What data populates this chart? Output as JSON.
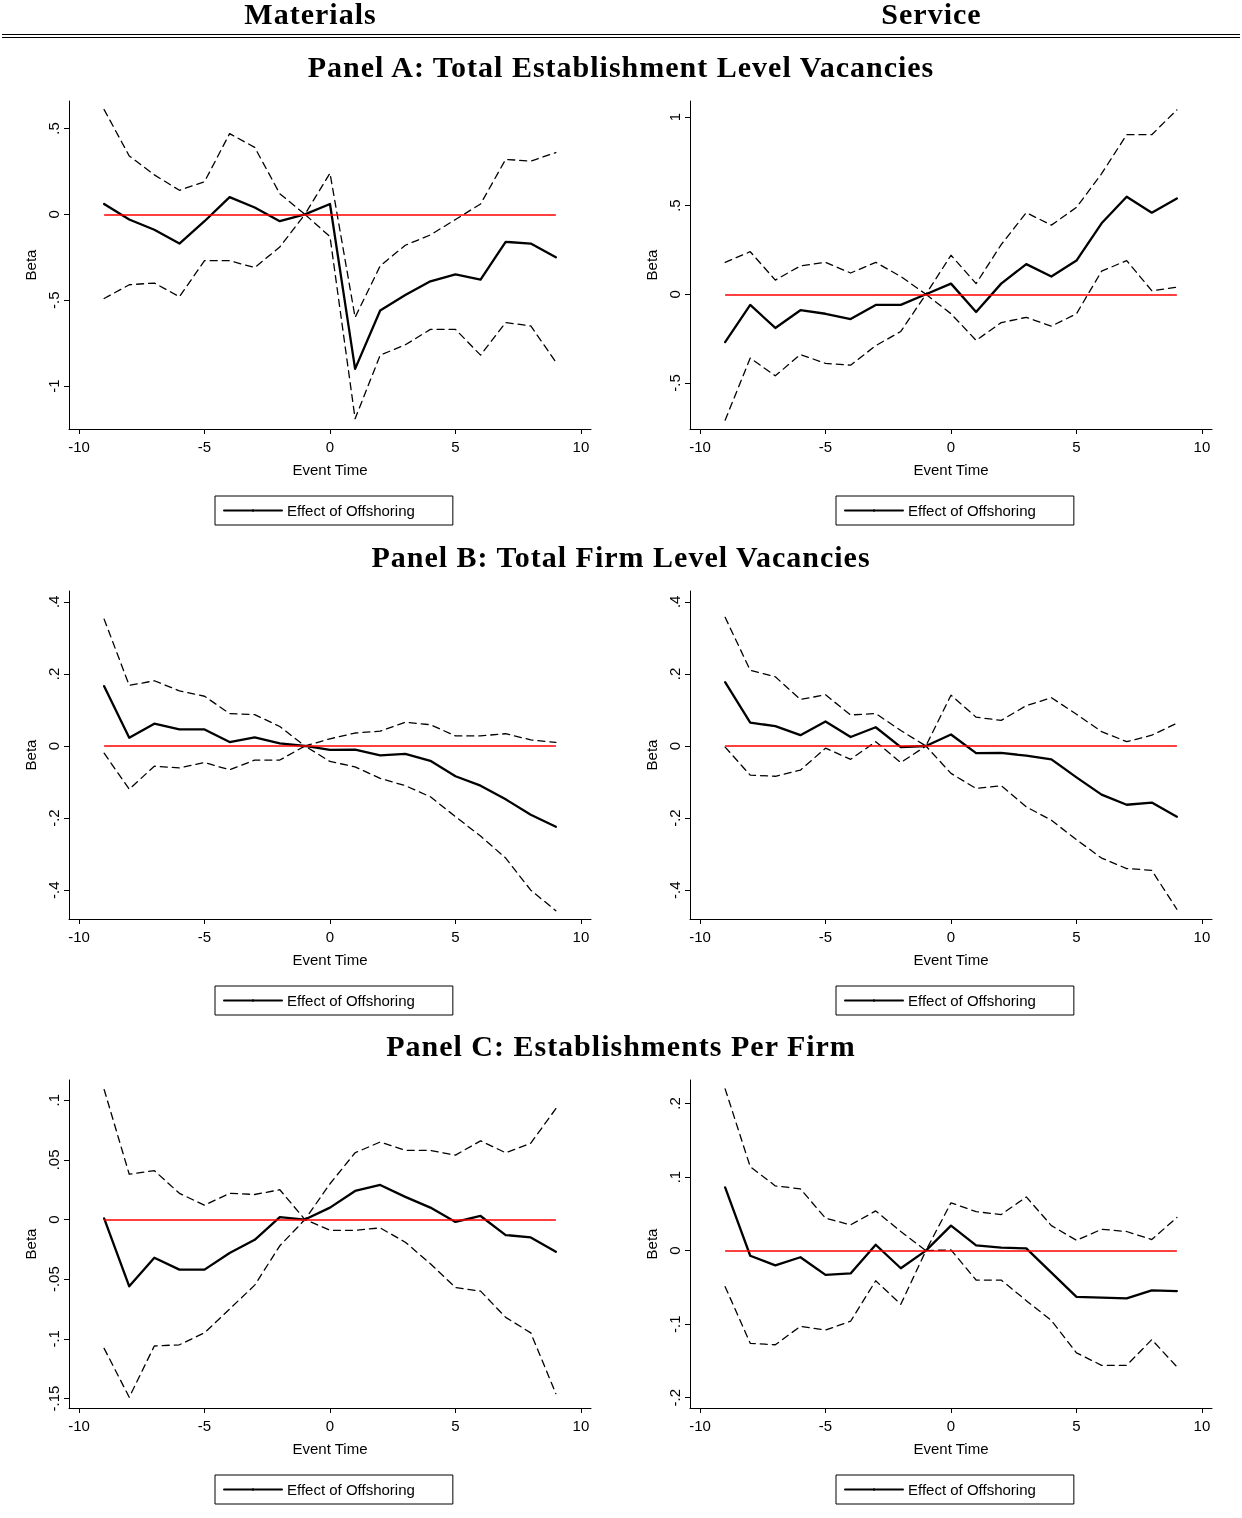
{
  "chart_data": [
    {
      "type": "line",
      "title": "Panel A: Total Establishment Level Vacancies",
      "annotations": [
        "Materials"
      ],
      "xlabel": "Event Time",
      "ylabel": "Beta",
      "legend": "bottom",
      "marker": "none",
      "x": [
        -9,
        -8,
        -7,
        -6,
        -5,
        -4,
        -3,
        -2,
        -1,
        0,
        1,
        2,
        3,
        4,
        5,
        6,
        7,
        8,
        9
      ],
      "xlim": [
        -10.4,
        10.4
      ],
      "xticks": [
        -10,
        -5,
        0,
        5,
        10
      ],
      "ylim": [
        -1.25,
        0.66
      ],
      "yticks": [
        {
          "value": 0.5,
          "label": ".5"
        },
        0,
        {
          "value": -0.5,
          "label": "-.5"
        },
        -1
      ],
      "ref_lines": [
        {
          "axis": "y",
          "value": 0,
          "color": "#ff0000"
        }
      ],
      "series": [
        {
          "name": "Effect of Offshoring",
          "color": "#000000",
          "line_style": "solid",
          "values": [
            0.06,
            -0.03,
            -0.09,
            -0.17,
            -0.04,
            0.1,
            0.04,
            -0.04,
            0,
            0.06,
            -0.9,
            -0.56,
            -0.47,
            -0.39,
            -0.35,
            -0.38,
            -0.16,
            -0.17,
            -0.25
          ]
        },
        {
          "color": "#000000",
          "line_style": "dashed",
          "values": [
            0.61,
            0.34,
            0.23,
            0.14,
            0.19,
            0.47,
            0.39,
            0.12,
            0,
            0.24,
            -0.6,
            -0.3,
            -0.18,
            -0.12,
            -0.03,
            0.06,
            0.32,
            0.31,
            0.36
          ]
        },
        {
          "color": "#000000",
          "line_style": "dashed",
          "values": [
            -0.49,
            -0.41,
            -0.4,
            -0.48,
            -0.27,
            -0.27,
            -0.31,
            -0.19,
            0,
            -0.13,
            -1.19,
            -0.82,
            -0.76,
            -0.67,
            -0.67,
            -0.82,
            -0.63,
            -0.65,
            -0.86
          ]
        }
      ]
    },
    {
      "type": "line",
      "annotations": [
        "Service"
      ],
      "xlabel": "Event Time",
      "ylabel": "Beta",
      "legend": "bottom",
      "marker": "none",
      "x": [
        -9,
        -8,
        -7,
        -6,
        -5,
        -4,
        -3,
        -2,
        -1,
        0,
        1,
        2,
        3,
        4,
        5,
        6,
        7,
        8,
        9
      ],
      "xlim": [
        -10.4,
        10.4
      ],
      "xticks": [
        -10,
        -5,
        0,
        5,
        10
      ],
      "ylim": [
        -0.76,
        1.09
      ],
      "yticks": [
        1,
        {
          "value": 0.5,
          "label": ".5"
        },
        0,
        {
          "value": -0.5,
          "label": "-.5"
        }
      ],
      "ref_lines": [
        {
          "axis": "y",
          "value": 0,
          "color": "#ff0000"
        }
      ],
      "series": [
        {
          "name": "Effect of Offshoring",
          "color": "#000000",
          "line_style": "solid",
          "values": [
            -0.27,
            -0.06,
            -0.19,
            -0.09,
            -0.11,
            -0.14,
            -0.06,
            -0.06,
            0,
            0.06,
            -0.1,
            0.06,
            0.17,
            0.1,
            0.19,
            0.4,
            0.55,
            0.46,
            0.54
          ]
        },
        {
          "color": "#000000",
          "line_style": "dashed",
          "values": [
            0.18,
            0.24,
            0.08,
            0.16,
            0.18,
            0.12,
            0.18,
            0.1,
            0,
            0.22,
            0.06,
            0.28,
            0.46,
            0.39,
            0.49,
            0.68,
            0.9,
            0.9,
            1.04
          ]
        },
        {
          "color": "#000000",
          "line_style": "dashed",
          "values": [
            -0.71,
            -0.36,
            -0.46,
            -0.34,
            -0.39,
            -0.4,
            -0.29,
            -0.21,
            0,
            -0.11,
            -0.26,
            -0.16,
            -0.13,
            -0.18,
            -0.11,
            0.13,
            0.19,
            0.02,
            0.04
          ]
        }
      ]
    },
    {
      "type": "line",
      "title": "Panel B: Total Firm Level Vacancies",
      "xlabel": "Event Time",
      "ylabel": "Beta",
      "legend": "bottom",
      "marker": "none",
      "x": [
        -9,
        -8,
        -7,
        -6,
        -5,
        -4,
        -3,
        -2,
        -1,
        0,
        1,
        2,
        3,
        4,
        5,
        6,
        7,
        8,
        9
      ],
      "xlim": [
        -10.4,
        10.4
      ],
      "xticks": [
        -10,
        -5,
        0,
        5,
        10
      ],
      "ylim": [
        -0.48,
        0.43
      ],
      "yticks": [
        {
          "value": 0.4,
          "label": ".4"
        },
        {
          "value": 0.2,
          "label": ".2"
        },
        0,
        {
          "value": -0.2,
          "label": "-.2"
        },
        {
          "value": -0.4,
          "label": "-.4"
        }
      ],
      "ref_lines": [
        {
          "axis": "y",
          "value": 0,
          "color": "#ff0000"
        }
      ],
      "series": [
        {
          "name": "Effect of Offshoring",
          "color": "#000000",
          "line_style": "solid",
          "values": [
            0.166,
            0.023,
            0.062,
            0.046,
            0.046,
            0.011,
            0.024,
            0.007,
            0,
            -0.011,
            -0.01,
            -0.026,
            -0.022,
            -0.041,
            -0.084,
            -0.11,
            -0.148,
            -0.191,
            -0.224
          ]
        },
        {
          "color": "#000000",
          "line_style": "dashed",
          "values": [
            0.352,
            0.168,
            0.181,
            0.153,
            0.138,
            0.09,
            0.087,
            0.054,
            0,
            0.02,
            0.036,
            0.041,
            0.066,
            0.059,
            0.028,
            0.028,
            0.034,
            0.017,
            0.01
          ]
        },
        {
          "color": "#000000",
          "line_style": "dashed",
          "values": [
            -0.02,
            -0.12,
            -0.056,
            -0.061,
            -0.046,
            -0.066,
            -0.039,
            -0.039,
            0,
            -0.043,
            -0.058,
            -0.09,
            -0.11,
            -0.141,
            -0.196,
            -0.25,
            -0.311,
            -0.4,
            -0.457
          ]
        }
      ]
    },
    {
      "type": "line",
      "xlabel": "Event Time",
      "ylabel": "Beta",
      "legend": "bottom",
      "marker": "none",
      "x": [
        -9,
        -8,
        -7,
        -6,
        -5,
        -4,
        -3,
        -2,
        -1,
        0,
        1,
        2,
        3,
        4,
        5,
        6,
        7,
        8,
        9
      ],
      "xlim": [
        -10.4,
        10.4
      ],
      "xticks": [
        -10,
        -5,
        0,
        5,
        10
      ],
      "ylim": [
        -0.48,
        0.43
      ],
      "yticks": [
        {
          "value": 0.4,
          "label": ".4"
        },
        {
          "value": 0.2,
          "label": ".2"
        },
        0,
        {
          "value": -0.2,
          "label": "-.2"
        },
        {
          "value": -0.4,
          "label": "-.4"
        }
      ],
      "ref_lines": [
        {
          "axis": "y",
          "value": 0,
          "color": "#ff0000"
        }
      ],
      "series": [
        {
          "name": "Effect of Offshoring",
          "color": "#000000",
          "line_style": "solid",
          "values": [
            0.177,
            0.065,
            0.055,
            0.03,
            0.068,
            0.025,
            0.052,
            -0.003,
            0,
            0.032,
            -0.02,
            -0.019,
            -0.027,
            -0.037,
            -0.087,
            -0.135,
            -0.163,
            -0.157,
            -0.196
          ]
        },
        {
          "color": "#000000",
          "line_style": "dashed",
          "values": [
            0.357,
            0.21,
            0.192,
            0.129,
            0.142,
            0.086,
            0.09,
            0.043,
            0,
            0.141,
            0.08,
            0.071,
            0.112,
            0.134,
            0.088,
            0.04,
            0.012,
            0.03,
            0.063
          ]
        },
        {
          "color": "#000000",
          "line_style": "dashed",
          "values": [
            -0.003,
            -0.081,
            -0.084,
            -0.067,
            -0.006,
            -0.037,
            0.012,
            -0.046,
            0,
            -0.076,
            -0.118,
            -0.11,
            -0.169,
            -0.206,
            -0.26,
            -0.311,
            -0.34,
            -0.345,
            -0.453
          ]
        }
      ]
    },
    {
      "type": "line",
      "title": "Panel C: Establishments Per Firm",
      "xlabel": "Event Time",
      "ylabel": "Beta",
      "legend": "bottom",
      "marker": "none",
      "x": [
        -9,
        -8,
        -7,
        -6,
        -5,
        -4,
        -3,
        -2,
        -1,
        0,
        1,
        2,
        3,
        4,
        5,
        6,
        7,
        8,
        9
      ],
      "xlim": [
        -10.4,
        10.4
      ],
      "xticks": [
        -10,
        -5,
        0,
        5,
        10
      ],
      "ylim": [
        -0.158,
        0.117
      ],
      "yticks": [
        {
          "value": 0.1,
          "label": ".1"
        },
        {
          "value": 0.05,
          "label": ".05"
        },
        0,
        {
          "value": -0.05,
          "label": "-.05"
        },
        {
          "value": -0.1,
          "label": "-.1"
        },
        {
          "value": -0.15,
          "label": "-.15"
        }
      ],
      "ref_lines": [
        {
          "axis": "y",
          "value": 0,
          "color": "#ff0000"
        }
      ],
      "series": [
        {
          "name": "Effect of Offshoring",
          "color": "#000000",
          "line_style": "solid",
          "values": [
            0.001,
            -0.056,
            -0.032,
            -0.042,
            -0.042,
            -0.028,
            -0.017,
            0.002,
            0,
            0.01,
            0.024,
            0.029,
            0.019,
            0.01,
            -0.002,
            0.003,
            -0.013,
            -0.015,
            -0.027
          ]
        },
        {
          "color": "#000000",
          "line_style": "dashed",
          "values": [
            0.109,
            0.038,
            0.041,
            0.022,
            0.012,
            0.022,
            0.021,
            0.025,
            0,
            0.03,
            0.056,
            0.065,
            0.058,
            0.058,
            0.054,
            0.066,
            0.056,
            0.064,
            0.093
          ]
        },
        {
          "color": "#000000",
          "line_style": "dashed",
          "values": [
            -0.108,
            -0.149,
            -0.106,
            -0.105,
            -0.095,
            -0.075,
            -0.055,
            -0.022,
            0,
            -0.009,
            -0.009,
            -0.007,
            -0.019,
            -0.037,
            -0.057,
            -0.06,
            -0.082,
            -0.095,
            -0.146
          ]
        }
      ]
    },
    {
      "type": "line",
      "xlabel": "Event Time",
      "ylabel": "Beta",
      "legend": "bottom",
      "marker": "none",
      "x": [
        -9,
        -8,
        -7,
        -6,
        -5,
        -4,
        -3,
        -2,
        -1,
        0,
        1,
        2,
        3,
        4,
        5,
        6,
        7,
        8,
        9
      ],
      "xlim": [
        -10.4,
        10.4
      ],
      "xticks": [
        -10,
        -5,
        0,
        5,
        10
      ],
      "ylim": [
        -0.214,
        0.232
      ],
      "yticks": [
        {
          "value": 0.2,
          "label": ".2"
        },
        {
          "value": 0.1,
          "label": ".1"
        },
        0,
        {
          "value": -0.1,
          "label": "-.1"
        },
        {
          "value": -0.2,
          "label": "-.2"
        }
      ],
      "ref_lines": [
        {
          "axis": "y",
          "value": 0,
          "color": "#ff0000"
        }
      ],
      "series": [
        {
          "name": "Effect of Offshoring",
          "color": "#000000",
          "line_style": "solid",
          "values": [
            0.086,
            -0.007,
            -0.02,
            -0.009,
            -0.033,
            -0.031,
            0.008,
            -0.024,
            0,
            0.034,
            0.007,
            0.004,
            0.003,
            -0.03,
            -0.063,
            -0.064,
            -0.065,
            -0.054,
            -0.055
          ]
        },
        {
          "color": "#000000",
          "line_style": "dashed",
          "values": [
            0.22,
            0.114,
            0.088,
            0.084,
            0.044,
            0.035,
            0.054,
            0.026,
            0,
            0.065,
            0.053,
            0.049,
            0.073,
            0.034,
            0.014,
            0.029,
            0.026,
            0.015,
            0.045
          ]
        },
        {
          "color": "#000000",
          "line_style": "dashed",
          "values": [
            -0.049,
            -0.126,
            -0.128,
            -0.103,
            -0.108,
            -0.096,
            -0.041,
            -0.073,
            0,
            0.001,
            -0.04,
            -0.04,
            -0.068,
            -0.095,
            -0.139,
            -0.156,
            -0.156,
            -0.121,
            -0.158
          ]
        }
      ]
    }
  ]
}
